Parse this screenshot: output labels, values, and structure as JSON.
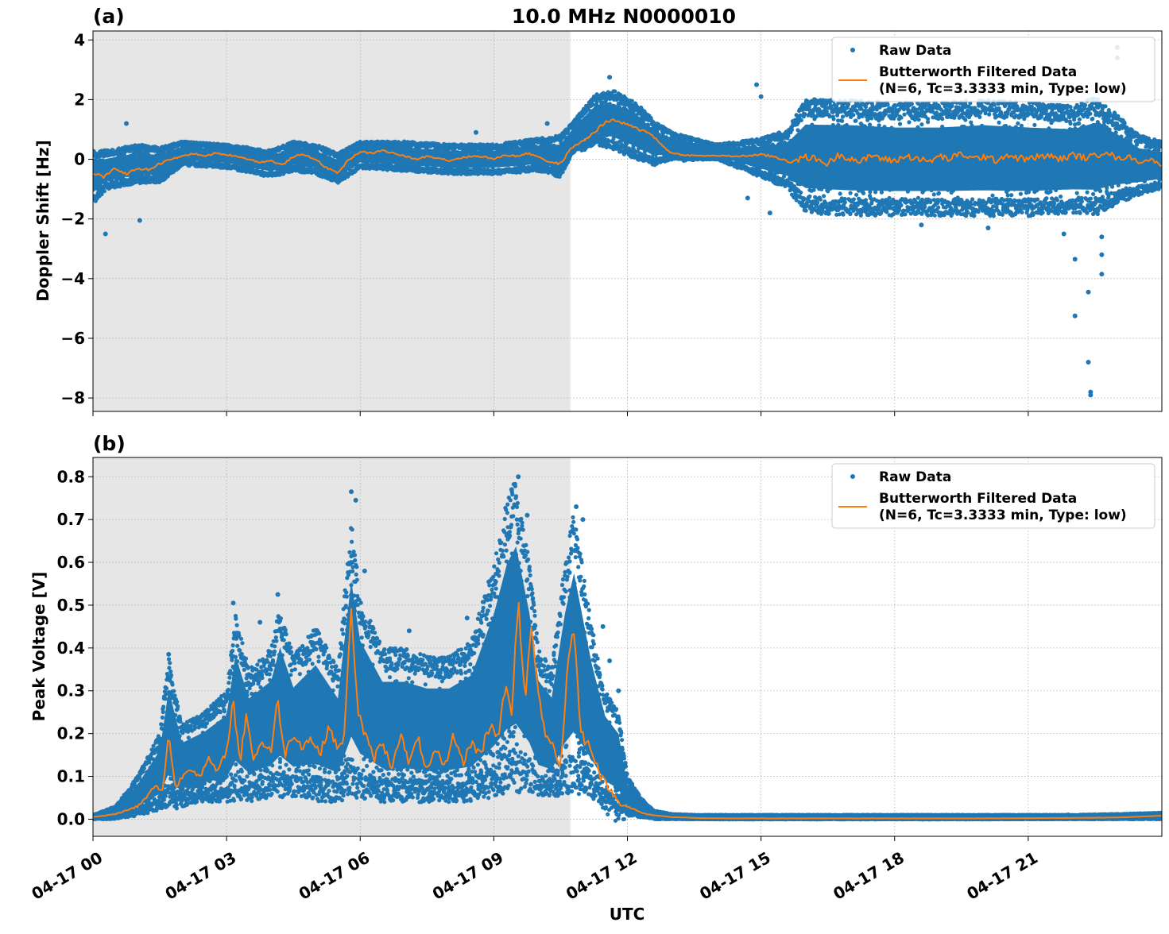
{
  "figure": {
    "title": "10.0 MHz N0000010",
    "xlabel": "UTC",
    "x_ticks": [
      "04-17 00",
      "04-17 03",
      "04-17 06",
      "04-17 09",
      "04-17 12",
      "04-17 15",
      "04-17 18",
      "04-17 21"
    ],
    "shaded_until_hour": 10.72,
    "colors": {
      "raw": "#1f77b4",
      "filtered": "#ff7f0e",
      "shade": "#e6e6e6"
    }
  },
  "legend": {
    "raw_label": "Raw Data",
    "filtered_line1": "Butterworth Filtered Data",
    "filtered_line2": "(N=6, Tc=3.3333 min, Type: low)"
  },
  "chart_data": [
    {
      "type": "scatter",
      "panel_label": "(a)",
      "ylabel": "Doppler Shift [Hz]",
      "xlim_hours": [
        0,
        24
      ],
      "ylim": [
        -8.45,
        4.3
      ],
      "yticks": [
        -8,
        -6,
        -4,
        -2,
        0,
        2,
        4
      ],
      "ytick_labels": [
        "−8",
        "−6",
        "−4",
        "−2",
        "0",
        "2",
        "4"
      ],
      "grid": true,
      "legend_position": "upper right",
      "series": [
        {
          "name": "Raw Data",
          "kind": "points",
          "envelope": {
            "x": [
              0,
              0.3,
              1,
              1.5,
              2,
              3,
              4,
              4.5,
              5,
              5.5,
              6,
              7,
              8,
              9,
              10,
              10.5,
              10.8,
              11.3,
              11.7,
              12.2,
              12.6,
              13,
              14,
              15,
              15.6,
              16,
              17,
              18,
              19,
              20,
              21,
              22,
              22.5,
              23,
              23.5,
              24
            ],
            "upper": [
              0.3,
              0.3,
              0.5,
              0.4,
              0.6,
              0.5,
              0.3,
              0.6,
              0.5,
              0.2,
              0.6,
              0.6,
              0.5,
              0.5,
              0.7,
              0.8,
              1.3,
              2.2,
              2.3,
              1.9,
              1.3,
              0.9,
              0.5,
              0.7,
              1.0,
              2.0,
              2.0,
              1.9,
              1.9,
              2.0,
              1.9,
              1.8,
              2.1,
              1.5,
              0.8,
              0.6
            ],
            "lower": [
              -1.5,
              -1.0,
              -0.8,
              -0.8,
              -0.2,
              -0.3,
              -0.6,
              -0.4,
              -0.5,
              -0.8,
              -0.3,
              -0.4,
              -0.5,
              -0.5,
              -0.4,
              -0.6,
              0.3,
              0.5,
              0.3,
              0.0,
              -0.2,
              0.0,
              0.0,
              -0.6,
              -1.0,
              -1.8,
              -1.9,
              -1.9,
              -1.9,
              -1.9,
              -1.9,
              -1.8,
              -1.9,
              -1.5,
              -1.2,
              -1.0
            ]
          },
          "outliers": [
            {
              "x": 0.28,
              "y": -2.5
            },
            {
              "x": 1.05,
              "y": -2.05
            },
            {
              "x": 0.75,
              "y": 1.2
            },
            {
              "x": 8.6,
              "y": 0.9
            },
            {
              "x": 10.2,
              "y": 1.2
            },
            {
              "x": 11.6,
              "y": 2.75
            },
            {
              "x": 14.9,
              "y": 2.5
            },
            {
              "x": 14.7,
              "y": -1.3
            },
            {
              "x": 15.0,
              "y": 2.1
            },
            {
              "x": 15.2,
              "y": -1.8
            },
            {
              "x": 16.2,
              "y": 2.0
            },
            {
              "x": 18.6,
              "y": -2.2
            },
            {
              "x": 20.1,
              "y": -2.3
            },
            {
              "x": 21.8,
              "y": -2.5
            },
            {
              "x": 22.05,
              "y": -3.35
            },
            {
              "x": 22.05,
              "y": -5.25
            },
            {
              "x": 22.35,
              "y": -4.45
            },
            {
              "x": 22.35,
              "y": -6.8
            },
            {
              "x": 22.4,
              "y": -7.8
            },
            {
              "x": 22.4,
              "y": -7.9
            },
            {
              "x": 22.65,
              "y": -3.2
            },
            {
              "x": 22.65,
              "y": -3.85
            },
            {
              "x": 22.65,
              "y": -2.6
            },
            {
              "x": 23.0,
              "y": 3.75
            },
            {
              "x": 23.0,
              "y": 3.4
            },
            {
              "x": 23.1,
              "y": 2.3
            }
          ]
        },
        {
          "name": "Butterworth Filtered Data",
          "kind": "line",
          "x": [
            0,
            0.25,
            0.5,
            0.75,
            1,
            1.25,
            1.5,
            1.75,
            2,
            2.25,
            2.5,
            2.75,
            3,
            3.25,
            3.5,
            3.75,
            4,
            4.25,
            4.5,
            4.75,
            5,
            5.25,
            5.5,
            5.75,
            6,
            6.25,
            6.5,
            6.75,
            7,
            7.25,
            7.5,
            7.75,
            8,
            8.25,
            8.5,
            8.75,
            9,
            9.25,
            9.5,
            9.75,
            10,
            10.25,
            10.5,
            10.75,
            11,
            11.25,
            11.5,
            11.75,
            12,
            12.25,
            12.5,
            12.75,
            13,
            13.25,
            13.5,
            14,
            14.5,
            15,
            15.25,
            15.5,
            15.75,
            16,
            16.25,
            16.5,
            16.75,
            17,
            17.25,
            17.5,
            17.75,
            18,
            18.25,
            18.5,
            18.75,
            19,
            19.25,
            19.5,
            19.75,
            20,
            20.25,
            20.5,
            20.75,
            21,
            21.25,
            21.5,
            21.75,
            22,
            22.25,
            22.5,
            22.75,
            23,
            23.25,
            23.5,
            23.75,
            24
          ],
          "y": [
            -0.45,
            -0.6,
            -0.3,
            -0.5,
            -0.3,
            -0.35,
            -0.15,
            0.0,
            0.1,
            0.2,
            0.1,
            0.2,
            0.15,
            0.1,
            0.0,
            -0.1,
            -0.05,
            -0.2,
            0.1,
            0.15,
            0.0,
            -0.3,
            -0.45,
            0.0,
            0.25,
            0.2,
            0.3,
            0.2,
            0.1,
            0.0,
            0.1,
            0.05,
            -0.05,
            0.05,
            0.1,
            0.1,
            0.0,
            0.15,
            0.1,
            0.2,
            0.1,
            -0.1,
            -0.15,
            0.4,
            0.6,
            0.9,
            1.25,
            1.3,
            1.15,
            1.0,
            0.9,
            0.5,
            0.2,
            0.15,
            0.12,
            0.12,
            0.1,
            0.15,
            0.1,
            0.0,
            -0.1,
            0.1,
            0.0,
            -0.15,
            0.15,
            0.05,
            -0.1,
            0.15,
            0.0,
            -0.05,
            0.1,
            0.05,
            -0.1,
            0.1,
            0.0,
            0.2,
            0.0,
            0.1,
            -0.05,
            0.15,
            0.05,
            0.0,
            0.1,
            0.1,
            0.0,
            0.15,
            0.05,
            0.1,
            0.3,
            0.0,
            0.1,
            -0.1,
            0.0,
            -0.2
          ]
        }
      ]
    },
    {
      "type": "scatter",
      "panel_label": "(b)",
      "ylabel": "Peak Voltage [V]",
      "xlim_hours": [
        0,
        24
      ],
      "ylim": [
        -0.04,
        0.845
      ],
      "yticks": [
        0.0,
        0.1,
        0.2,
        0.3,
        0.4,
        0.5,
        0.6,
        0.7,
        0.8
      ],
      "ytick_labels": [
        "0.0",
        "0.1",
        "0.2",
        "0.3",
        "0.4",
        "0.5",
        "0.6",
        "0.7",
        "0.8"
      ],
      "grid": true,
      "legend_position": "upper right",
      "series": [
        {
          "name": "Raw Data",
          "kind": "points",
          "envelope": {
            "x": [
              0,
              0.5,
              1,
              1.5,
              1.7,
              2,
              2.5,
              3,
              3.2,
              3.5,
              4,
              4.2,
              4.5,
              5,
              5.5,
              5.8,
              6,
              6.5,
              7,
              7.5,
              8,
              8.5,
              9,
              9.3,
              9.5,
              9.8,
              10,
              10.3,
              10.6,
              10.8,
              11.2,
              11.5,
              11.8,
              12,
              12.3,
              12.6,
              13,
              13.5,
              14,
              16,
              18,
              20,
              22,
              23,
              24
            ],
            "upper": [
              0.01,
              0.03,
              0.1,
              0.2,
              0.38,
              0.22,
              0.25,
              0.3,
              0.48,
              0.35,
              0.4,
              0.5,
              0.38,
              0.45,
              0.35,
              0.7,
              0.52,
              0.4,
              0.4,
              0.38,
              0.38,
              0.42,
              0.6,
              0.75,
              0.8,
              0.6,
              0.4,
              0.35,
              0.6,
              0.72,
              0.45,
              0.3,
              0.25,
              0.1,
              0.05,
              0.02,
              0.012,
              0.01,
              0.01,
              0.01,
              0.01,
              0.01,
              0.01,
              0.012,
              0.015
            ],
            "lower": [
              0.0,
              0.0,
              0.01,
              0.02,
              0.03,
              0.03,
              0.04,
              0.04,
              0.04,
              0.04,
              0.05,
              0.05,
              0.05,
              0.04,
              0.04,
              0.05,
              0.05,
              0.04,
              0.04,
              0.04,
              0.04,
              0.04,
              0.05,
              0.06,
              0.06,
              0.06,
              0.05,
              0.05,
              0.06,
              0.06,
              0.05,
              0.03,
              0.02,
              0.01,
              0.005,
              0.0,
              0.0,
              0.0,
              0.0,
              0.0,
              0.0,
              0.0,
              0.0,
              0.0,
              0.0
            ]
          },
          "outliers": [
            {
              "x": 1.7,
              "y": 0.385
            },
            {
              "x": 3.15,
              "y": 0.505
            },
            {
              "x": 3.75,
              "y": 0.46
            },
            {
              "x": 4.15,
              "y": 0.525
            },
            {
              "x": 5.8,
              "y": 0.765
            },
            {
              "x": 5.9,
              "y": 0.745
            },
            {
              "x": 6.1,
              "y": 0.58
            },
            {
              "x": 7.1,
              "y": 0.44
            },
            {
              "x": 8.4,
              "y": 0.47
            },
            {
              "x": 9.4,
              "y": 0.77
            },
            {
              "x": 9.55,
              "y": 0.8
            },
            {
              "x": 9.75,
              "y": 0.71
            },
            {
              "x": 10.85,
              "y": 0.73
            },
            {
              "x": 11.0,
              "y": 0.7
            },
            {
              "x": 11.45,
              "y": 0.45
            },
            {
              "x": 11.6,
              "y": 0.37
            },
            {
              "x": 11.8,
              "y": 0.3
            },
            {
              "x": 21.9,
              "y": 0.01
            }
          ]
        },
        {
          "name": "Butterworth Filtered Data",
          "kind": "line",
          "x": [
            0,
            0.25,
            0.5,
            0.75,
            1,
            1.2,
            1.4,
            1.55,
            1.7,
            1.85,
            2.0,
            2.2,
            2.4,
            2.6,
            2.8,
            3.0,
            3.15,
            3.3,
            3.45,
            3.6,
            3.8,
            4.0,
            4.15,
            4.3,
            4.5,
            4.7,
            4.9,
            5.1,
            5.3,
            5.5,
            5.65,
            5.8,
            5.95,
            6.1,
            6.3,
            6.5,
            6.7,
            6.9,
            7.1,
            7.3,
            7.5,
            7.7,
            7.9,
            8.1,
            8.3,
            8.5,
            8.7,
            8.9,
            9.1,
            9.25,
            9.4,
            9.55,
            9.7,
            9.85,
            10.0,
            10.15,
            10.3,
            10.5,
            10.65,
            10.8,
            10.95,
            11.1,
            11.25,
            11.4,
            11.6,
            11.8,
            12.0,
            12.2,
            12.4,
            12.7,
            13.0,
            13.5,
            14.0,
            16.0,
            18.0,
            20.0,
            22.0,
            23.0,
            24.0
          ],
          "y": [
            0.005,
            0.008,
            0.012,
            0.02,
            0.03,
            0.05,
            0.08,
            0.06,
            0.2,
            0.07,
            0.1,
            0.12,
            0.1,
            0.14,
            0.11,
            0.16,
            0.28,
            0.13,
            0.25,
            0.14,
            0.18,
            0.16,
            0.28,
            0.15,
            0.2,
            0.17,
            0.19,
            0.15,
            0.22,
            0.16,
            0.2,
            0.5,
            0.25,
            0.2,
            0.14,
            0.18,
            0.12,
            0.2,
            0.13,
            0.19,
            0.11,
            0.16,
            0.12,
            0.2,
            0.13,
            0.18,
            0.15,
            0.22,
            0.2,
            0.3,
            0.26,
            0.5,
            0.28,
            0.45,
            0.3,
            0.2,
            0.18,
            0.12,
            0.35,
            0.45,
            0.2,
            0.18,
            0.15,
            0.1,
            0.07,
            0.04,
            0.03,
            0.02,
            0.012,
            0.008,
            0.005,
            0.003,
            0.002,
            0.002,
            0.002,
            0.002,
            0.003,
            0.004,
            0.008
          ]
        }
      ]
    }
  ]
}
